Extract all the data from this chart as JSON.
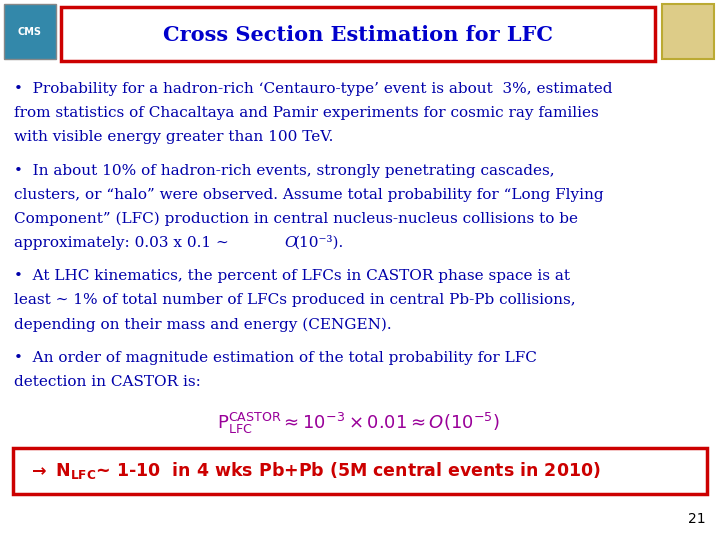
{
  "title": "Cross Section Estimation for LFC",
  "title_color": "#0000CC",
  "title_border_color": "#CC0000",
  "background_color": "#FFFFFF",
  "text_color": "#0000AA",
  "bullet1_line1": "•  Probability for a hadron-rich ‘Centauro-type’ event is about  3%, estimated",
  "bullet1_line2": "from statistics of Chacaltaya and Pamir experiments for cosmic ray families",
  "bullet1_line3": "with visible energy greater than 100 TeV.",
  "bullet2_line1": "•  In about 10% of hadron-rich events, strongly penetrating cascades,",
  "bullet2_line2": "clusters, or “halo” were observed. Assume total probability for “Long Flying",
  "bullet2_line3": "Component” (LFC) production in central nucleus-nucleus collisions to be",
  "bullet2_line4": "approximately: 0.03 x 0.1 ∼ ",
  "bullet2_line4b": "O",
  "bullet2_line4c": "(10⁻³).",
  "bullet3_line1": "•  At LHC kinematics, the percent of LFCs in CASTOR phase space is at",
  "bullet3_line2": "least ∼ 1% of total number of LFCs produced in central Pb-Pb collisions,",
  "bullet3_line3": "depending on their mass and energy (CENGEN).",
  "bullet4_line1": "•  An order of magnitude estimation of the total probability for LFC",
  "bullet4_line2": "detection in CASTOR is:",
  "formula_color": "#990099",
  "bottom_box_color": "#CC0000",
  "bottom_text_color": "#CC0000",
  "page_number": "21",
  "font_size_body": 11.0,
  "font_size_title": 15.0,
  "font_size_formula": 12.0,
  "font_size_bottom": 12.5
}
